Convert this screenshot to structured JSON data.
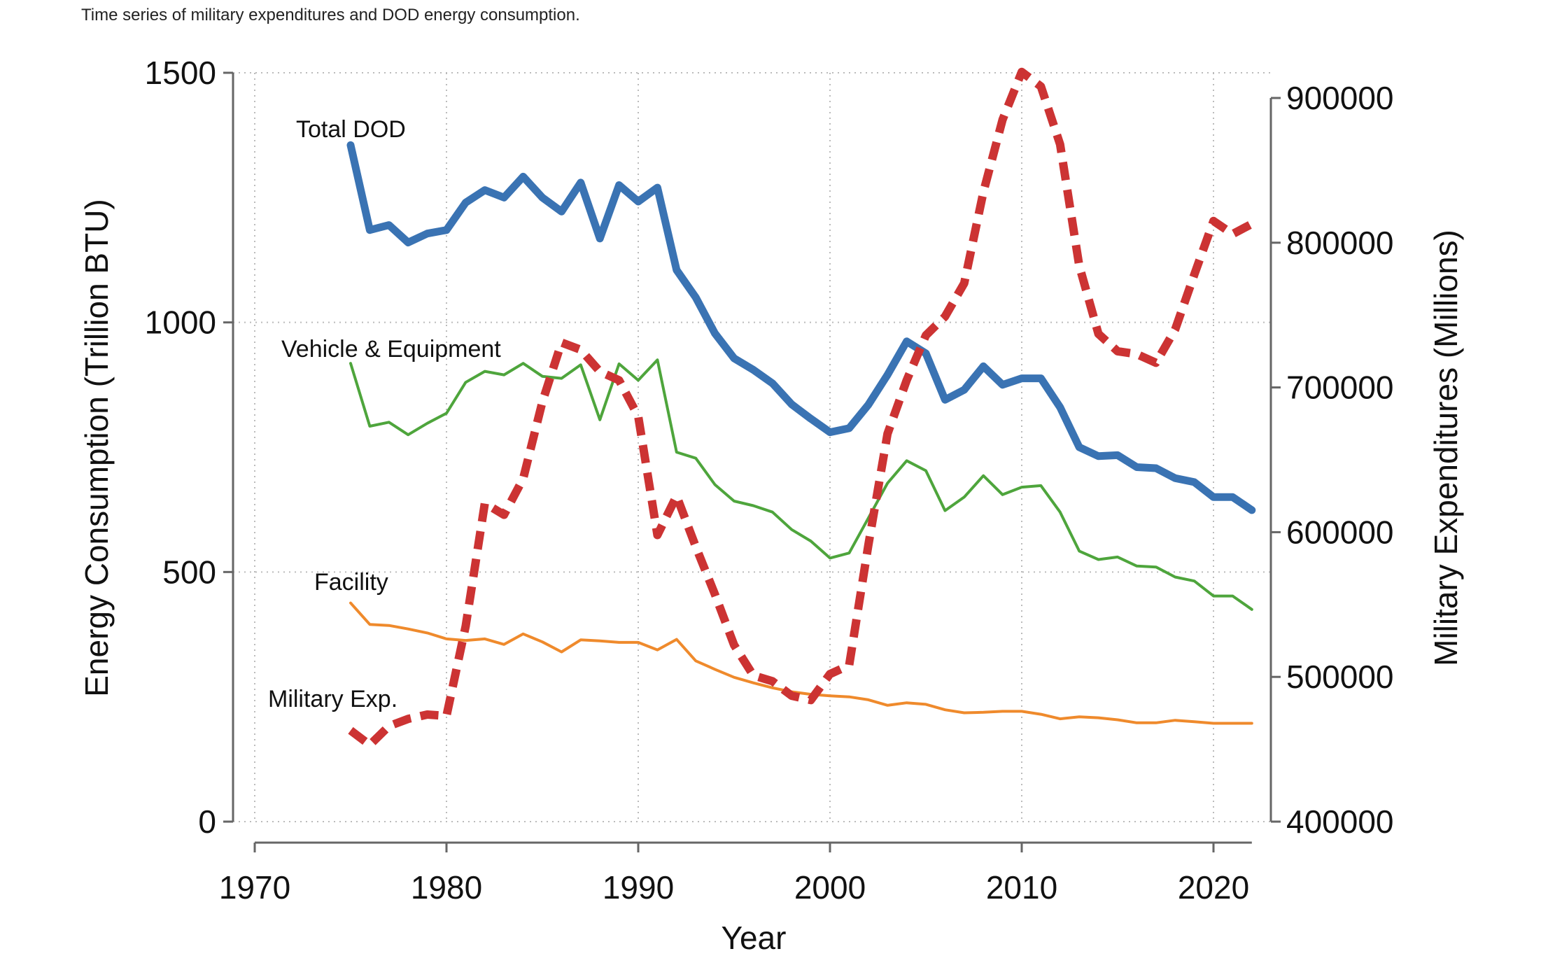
{
  "caption": "Time series of military expenditures and DOD energy consumption.",
  "chart_data": {
    "type": "line",
    "title": "",
    "xlabel": "Year",
    "ylabel": "Energy Consumption (Trillion BTU)",
    "y2label": "Military Expenditures (Millions)",
    "xlim": [
      1970,
      2022
    ],
    "ylim": [
      0,
      1500
    ],
    "y2lim": [
      400000,
      917000
    ],
    "x_ticks": [
      1970,
      1980,
      1990,
      2000,
      2010,
      2020
    ],
    "y_ticks": [
      0,
      500,
      1000,
      1500
    ],
    "y2_ticks": [
      400000,
      500000,
      600000,
      700000,
      800000,
      900000
    ],
    "grid": true,
    "x": [
      1975,
      1976,
      1977,
      1978,
      1979,
      1980,
      1981,
      1982,
      1983,
      1984,
      1985,
      1986,
      1987,
      1988,
      1989,
      1990,
      1991,
      1992,
      1993,
      1994,
      1995,
      1996,
      1997,
      1998,
      1999,
      2000,
      2001,
      2002,
      2003,
      2004,
      2005,
      2006,
      2007,
      2008,
      2009,
      2010,
      2011,
      2012,
      2013,
      2014,
      2015,
      2016,
      2017,
      2018,
      2019,
      2020,
      2021,
      2022
    ],
    "series": [
      {
        "name": "Total DOD",
        "axis": "left",
        "color": "#3a73b3",
        "style": "solid",
        "values": [
          1355,
          1185,
          1195,
          1160,
          1178,
          1185,
          1240,
          1265,
          1250,
          1292,
          1250,
          1222,
          1280,
          1168,
          1275,
          1242,
          1270,
          1105,
          1050,
          978,
          928,
          905,
          878,
          836,
          807,
          780,
          788,
          835,
          895,
          962,
          938,
          845,
          865,
          912,
          875,
          888,
          888,
          830,
          750,
          732,
          734,
          710,
          708,
          688,
          680,
          650,
          650,
          624
        ]
      },
      {
        "name": "Vehicle & Equipment",
        "axis": "left",
        "color": "#4ea53c",
        "style": "solid",
        "values": [
          918,
          792,
          800,
          775,
          798,
          818,
          880,
          902,
          895,
          918,
          892,
          888,
          915,
          805,
          917,
          884,
          925,
          740,
          728,
          675,
          642,
          633,
          620,
          585,
          562,
          528,
          538,
          608,
          678,
          723,
          703,
          623,
          650,
          693,
          655,
          670,
          673,
          620,
          542,
          525,
          530,
          512,
          510,
          490,
          482,
          452,
          452,
          425
        ]
      },
      {
        "name": "Facility",
        "axis": "left",
        "color": "#ef8a2c",
        "style": "solid",
        "values": [
          438,
          395,
          393,
          386,
          378,
          366,
          363,
          366,
          355,
          376,
          360,
          340,
          364,
          362,
          359,
          359,
          344,
          365,
          322,
          305,
          289,
          278,
          268,
          260,
          255,
          252,
          250,
          244,
          233,
          238,
          235,
          224,
          218,
          219,
          221,
          221,
          215,
          206,
          210,
          208,
          204,
          198,
          198,
          203,
          200,
          197,
          197,
          197
        ]
      },
      {
        "name": "Military Exp.",
        "axis": "right",
        "color": "#cc3333",
        "style": "dashed",
        "values": [
          463000,
          453000,
          466000,
          471000,
          474000,
          473000,
          535000,
          620000,
          612000,
          637000,
          690000,
          731000,
          726000,
          711000,
          705000,
          680000,
          598000,
          625000,
          590000,
          557000,
          522000,
          501000,
          497000,
          487000,
          484000,
          502000,
          508000,
          591000,
          668000,
          705000,
          736000,
          749000,
          772000,
          835000,
          885000,
          918000,
          908000,
          868000,
          784000,
          737000,
          725000,
          723000,
          717000,
          740000,
          778000,
          815000,
          806000,
          813000
        ]
      }
    ]
  }
}
